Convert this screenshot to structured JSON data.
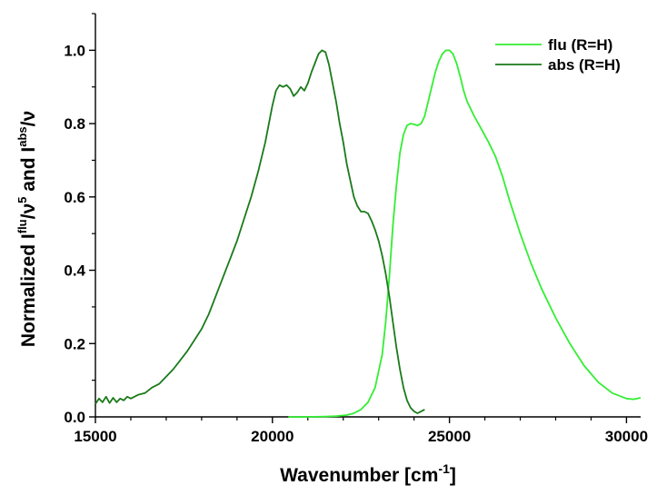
{
  "chart_data": {
    "type": "line",
    "title": "",
    "xlabel": {
      "main": "Wavenumber [cm",
      "sup": "-1",
      "tail": "]"
    },
    "ylabel": {
      "parts": [
        {
          "t": "Normalized I",
          "sup": false
        },
        {
          "t": "flu",
          "sup": true
        },
        {
          "t": "/ν",
          "sup": false
        },
        {
          "t": "5",
          "sup": true
        },
        {
          "t": " and I",
          "sup": false
        },
        {
          "t": "abs",
          "sup": true
        },
        {
          "t": "/ν",
          "sup": false
        }
      ]
    },
    "xlim": [
      15000,
      30400
    ],
    "ylim": [
      0,
      1.1
    ],
    "xticks": [
      {
        "value": 15000,
        "label": "15000"
      },
      {
        "value": 20000,
        "label": "20000"
      },
      {
        "value": 25000,
        "label": "25000"
      },
      {
        "value": 30000,
        "label": "30000"
      }
    ],
    "yticks": [
      {
        "value": 0.0,
        "label": "0.0"
      },
      {
        "value": 0.2,
        "label": "0.2"
      },
      {
        "value": 0.4,
        "label": "0.4"
      },
      {
        "value": 0.6,
        "label": "0.6"
      },
      {
        "value": 0.8,
        "label": "0.8"
      },
      {
        "value": 1.0,
        "label": "1.0"
      }
    ],
    "legend_position": "top-right",
    "series": [
      {
        "name": "flu (R=H)",
        "color": "#33ee33",
        "x": [
          20450,
          21000,
          21500,
          21800,
          22100,
          22300,
          22500,
          22700,
          22900,
          23100,
          23200,
          23300,
          23400,
          23500,
          23600,
          23700,
          23800,
          23900,
          24000,
          24100,
          24200,
          24300,
          24400,
          24500,
          24600,
          24700,
          24800,
          24900,
          25000,
          25100,
          25200,
          25300,
          25400,
          25500,
          25700,
          25900,
          26100,
          26300,
          26500,
          26700,
          27000,
          27300,
          27600,
          28000,
          28400,
          28800,
          29200,
          29600,
          30000,
          30200,
          30400
        ],
        "values": [
          0.0,
          0.0,
          0.001,
          0.002,
          0.005,
          0.01,
          0.02,
          0.04,
          0.08,
          0.17,
          0.26,
          0.38,
          0.52,
          0.63,
          0.72,
          0.77,
          0.795,
          0.8,
          0.798,
          0.795,
          0.8,
          0.82,
          0.86,
          0.9,
          0.94,
          0.97,
          0.99,
          1.0,
          1.0,
          0.99,
          0.965,
          0.93,
          0.89,
          0.86,
          0.82,
          0.785,
          0.75,
          0.71,
          0.655,
          0.59,
          0.5,
          0.42,
          0.35,
          0.27,
          0.2,
          0.14,
          0.095,
          0.065,
          0.05,
          0.048,
          0.052
        ]
      },
      {
        "name": "abs (R=H)",
        "color": "#1a7a1a",
        "x": [
          15000,
          15100,
          15200,
          15300,
          15400,
          15500,
          15600,
          15700,
          15800,
          15900,
          16000,
          16200,
          16400,
          16600,
          16800,
          17000,
          17200,
          17400,
          17600,
          17800,
          18000,
          18200,
          18400,
          18600,
          18800,
          19000,
          19200,
          19400,
          19600,
          19800,
          19900,
          20000,
          20100,
          20200,
          20300,
          20400,
          20500,
          20600,
          20700,
          20800,
          20900,
          21000,
          21100,
          21200,
          21300,
          21400,
          21500,
          21600,
          21700,
          21800,
          21900,
          22000,
          22100,
          22200,
          22300,
          22400,
          22500,
          22600,
          22700,
          22800,
          22900,
          23000,
          23100,
          23200,
          23300,
          23400,
          23500,
          23600,
          23700,
          23800,
          23900,
          24000,
          24100,
          24200,
          24300
        ],
        "values": [
          0.035,
          0.05,
          0.04,
          0.055,
          0.038,
          0.052,
          0.04,
          0.05,
          0.045,
          0.055,
          0.05,
          0.06,
          0.065,
          0.08,
          0.09,
          0.11,
          0.13,
          0.155,
          0.18,
          0.21,
          0.24,
          0.28,
          0.33,
          0.38,
          0.43,
          0.48,
          0.54,
          0.6,
          0.67,
          0.75,
          0.8,
          0.85,
          0.89,
          0.905,
          0.9,
          0.905,
          0.895,
          0.875,
          0.885,
          0.9,
          0.89,
          0.91,
          0.94,
          0.965,
          0.99,
          1.0,
          0.995,
          0.96,
          0.91,
          0.86,
          0.8,
          0.75,
          0.69,
          0.645,
          0.6,
          0.575,
          0.56,
          0.56,
          0.555,
          0.535,
          0.51,
          0.48,
          0.44,
          0.39,
          0.33,
          0.26,
          0.19,
          0.13,
          0.08,
          0.045,
          0.025,
          0.015,
          0.01,
          0.015,
          0.02
        ]
      }
    ]
  }
}
